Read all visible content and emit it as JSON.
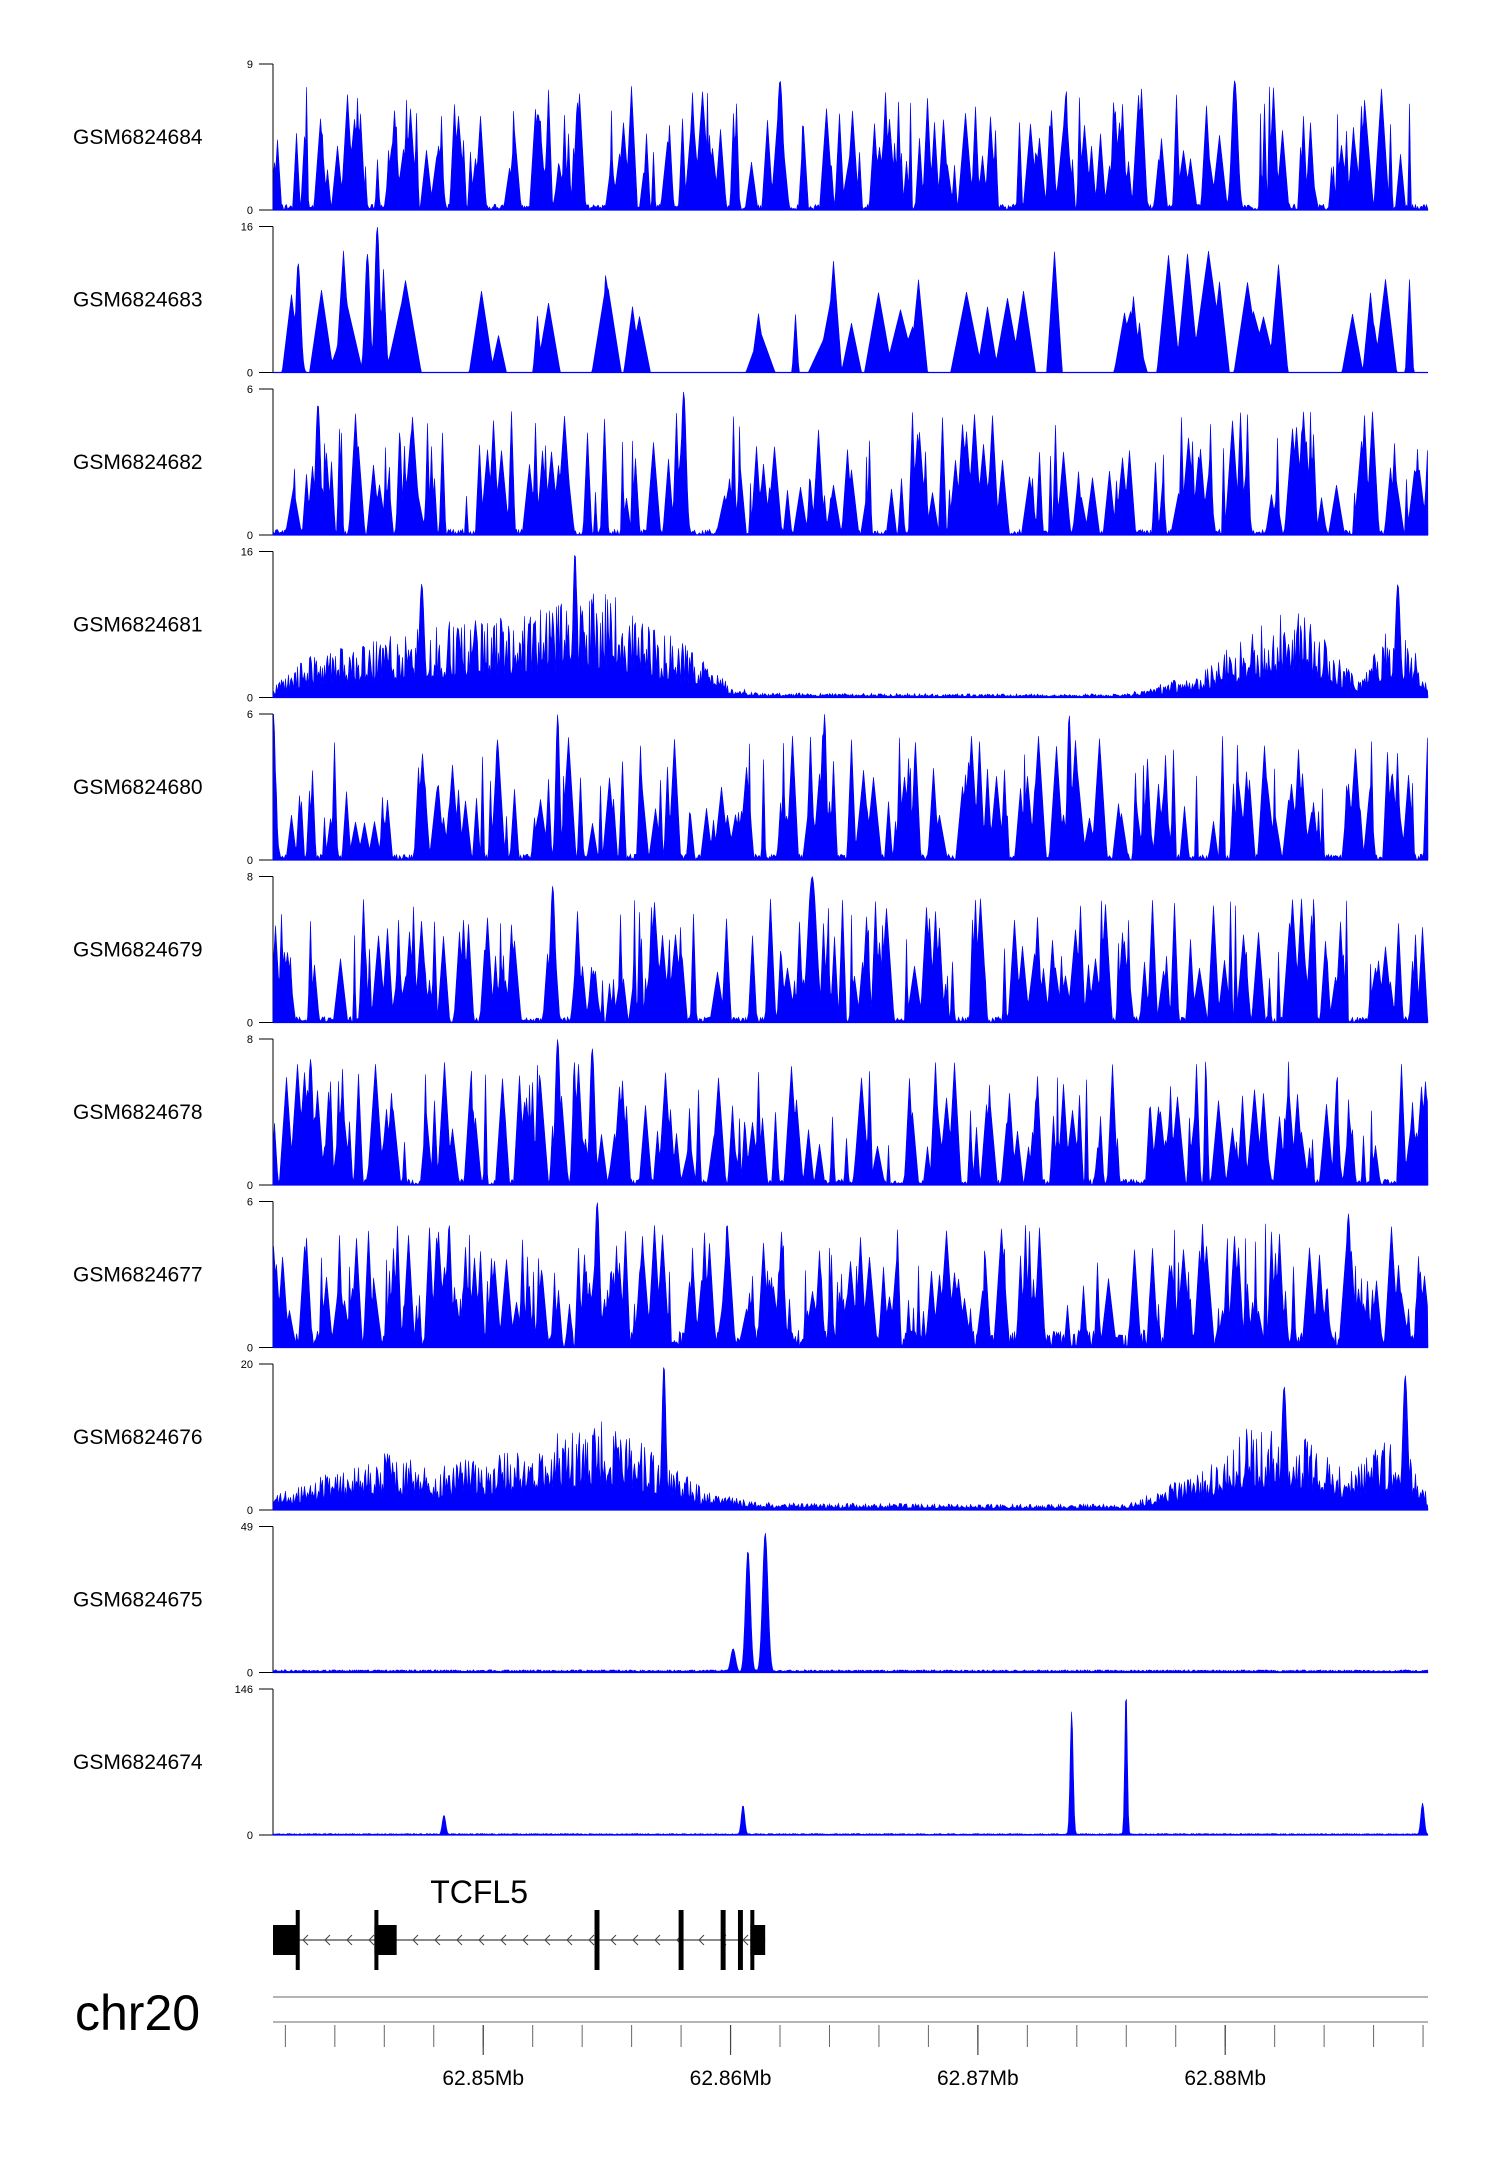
{
  "chart_data": {
    "type": "area",
    "chromosome": "chr20",
    "x_range_mb": [
      62.8415,
      62.8882
    ],
    "tracks": [
      {
        "name": "GSM6824684",
        "ylim": [
          0,
          9
        ],
        "ymax_label": "9",
        "ymin_label": "0",
        "kind": "spiky",
        "seed": 684,
        "profile": [],
        "peaks": [
          {
            "pos": 62.862,
            "h": 8.0,
            "w": 0.00012
          },
          {
            "pos": 62.8804,
            "h": 8.0,
            "w": 0.00012
          }
        ]
      },
      {
        "name": "GSM6824683",
        "ylim": [
          0,
          16
        ],
        "ymax_label": "16",
        "ymin_label": "0",
        "kind": "sparse",
        "seed": 683,
        "profile": [],
        "peaks": [
          {
            "pos": 62.8457,
            "h": 16,
            "w": 0.0001
          },
          {
            "pos": 62.8453,
            "h": 13,
            "w": 0.0001
          },
          {
            "pos": 62.8425,
            "h": 12,
            "w": 0.0001
          }
        ]
      },
      {
        "name": "GSM6824682",
        "ylim": [
          0,
          6
        ],
        "ymax_label": "6",
        "ymin_label": "0",
        "kind": "spiky",
        "seed": 682,
        "profile": [],
        "peaks": [
          {
            "pos": 62.8581,
            "h": 5.9,
            "w": 0.0001
          },
          {
            "pos": 62.8433,
            "h": 5.4,
            "w": 0.0001
          }
        ]
      },
      {
        "name": "GSM6824681",
        "ylim": [
          0,
          16
        ],
        "ymax_label": "16",
        "ymin_label": "0",
        "kind": "broad",
        "seed": 681,
        "profile": [
          [
            62.8415,
            1.0
          ],
          [
            62.843,
            3.5
          ],
          [
            62.846,
            5.0
          ],
          [
            62.8475,
            6.0
          ],
          [
            62.85,
            6.5
          ],
          [
            62.853,
            7.5
          ],
          [
            62.855,
            9.0
          ],
          [
            62.857,
            6.0
          ],
          [
            62.859,
            3.0
          ],
          [
            62.86,
            1.0
          ],
          [
            62.861,
            0.4
          ],
          [
            62.87,
            0.3
          ],
          [
            62.876,
            0.3
          ],
          [
            62.879,
            2.0
          ],
          [
            62.881,
            5.5
          ],
          [
            62.883,
            7.5
          ],
          [
            62.8845,
            3.5
          ],
          [
            62.8855,
            1.5
          ],
          [
            62.8865,
            6.0
          ],
          [
            62.8878,
            4.0
          ],
          [
            62.8882,
            1.0
          ]
        ],
        "peaks": [
          {
            "pos": 62.8537,
            "h": 16,
            "w": 8e-05
          },
          {
            "pos": 62.8475,
            "h": 12.5,
            "w": 0.0001
          },
          {
            "pos": 62.887,
            "h": 12.5,
            "w": 0.0001
          }
        ]
      },
      {
        "name": "GSM6824680",
        "ylim": [
          0,
          6
        ],
        "ymax_label": "6",
        "ymin_label": "0",
        "kind": "spiky",
        "seed": 680,
        "profile": [],
        "peaks": [
          {
            "pos": 62.8415,
            "h": 6,
            "w": 8e-05
          },
          {
            "pos": 62.853,
            "h": 6,
            "w": 8e-05
          },
          {
            "pos": 62.8638,
            "h": 6,
            "w": 8e-05
          },
          {
            "pos": 62.8737,
            "h": 6,
            "w": 8e-05
          }
        ]
      },
      {
        "name": "GSM6824679",
        "ylim": [
          0,
          8
        ],
        "ymax_label": "8",
        "ymin_label": "0",
        "kind": "spiky",
        "seed": 679,
        "profile": [],
        "peaks": [
          {
            "pos": 62.8633,
            "h": 8,
            "w": 0.00018
          },
          {
            "pos": 62.8528,
            "h": 7.5,
            "w": 0.0001
          }
        ]
      },
      {
        "name": "GSM6824678",
        "ylim": [
          0,
          8
        ],
        "ymax_label": "8",
        "ymin_label": "0",
        "kind": "spiky",
        "seed": 678,
        "profile": [],
        "peaks": [
          {
            "pos": 62.853,
            "h": 8,
            "w": 0.0001
          },
          {
            "pos": 62.8544,
            "h": 7.5,
            "w": 0.0001
          },
          {
            "pos": 62.843,
            "h": 6.9,
            "w": 0.0001
          }
        ]
      },
      {
        "name": "GSM6824677",
        "ylim": [
          0,
          6
        ],
        "ymax_label": "6",
        "ymin_label": "0",
        "kind": "dense",
        "seed": 677,
        "profile": [],
        "peaks": [
          {
            "pos": 62.8546,
            "h": 6,
            "w": 0.0001
          },
          {
            "pos": 62.885,
            "h": 5.5,
            "w": 0.0001
          }
        ]
      },
      {
        "name": "GSM6824676",
        "ylim": [
          0,
          20
        ],
        "ymax_label": "20",
        "ymin_label": "0",
        "kind": "broad",
        "seed": 676,
        "profile": [
          [
            62.8415,
            1.5
          ],
          [
            62.843,
            3.0
          ],
          [
            62.846,
            6.0
          ],
          [
            62.848,
            4.5
          ],
          [
            62.85,
            5.5
          ],
          [
            62.853,
            8.0
          ],
          [
            62.855,
            9.5
          ],
          [
            62.857,
            6.0
          ],
          [
            62.859,
            2.0
          ],
          [
            62.861,
            0.8
          ],
          [
            62.87,
            0.6
          ],
          [
            62.876,
            0.6
          ],
          [
            62.879,
            4.0
          ],
          [
            62.881,
            9.0
          ],
          [
            62.883,
            8.0
          ],
          [
            62.885,
            4.0
          ],
          [
            62.8865,
            7.0
          ],
          [
            62.8878,
            5.0
          ],
          [
            62.8882,
            1.5
          ]
        ],
        "peaks": [
          {
            "pos": 62.8573,
            "h": 20,
            "w": 8e-05
          },
          {
            "pos": 62.8873,
            "h": 18.5,
            "w": 0.0001
          },
          {
            "pos": 62.8824,
            "h": 17.0,
            "w": 0.0001
          }
        ]
      },
      {
        "name": "GSM6824675",
        "ylim": [
          0,
          49
        ],
        "ymax_label": "49",
        "ymin_label": "0",
        "kind": "quiet",
        "seed": 675,
        "profile": [
          [
            62.8415,
            0.6
          ],
          [
            62.8882,
            0.6
          ]
        ],
        "peaks": [
          {
            "pos": 62.8607,
            "h": 41,
            "w": 0.0001
          },
          {
            "pos": 62.8614,
            "h": 47,
            "w": 0.00011
          },
          {
            "pos": 62.8601,
            "h": 8,
            "w": 0.0001
          }
        ]
      },
      {
        "name": "GSM6824674",
        "ylim": [
          0,
          146
        ],
        "ymax_label": "146",
        "ymin_label": "0",
        "kind": "quiet",
        "seed": 674,
        "profile": [
          [
            62.8415,
            1.0
          ],
          [
            62.8882,
            1.0
          ]
        ],
        "peaks": [
          {
            "pos": 62.8484,
            "h": 20,
            "w": 7e-05
          },
          {
            "pos": 62.8605,
            "h": 30,
            "w": 7e-05
          },
          {
            "pos": 62.8738,
            "h": 124,
            "w": 6e-05
          },
          {
            "pos": 62.876,
            "h": 146,
            "w": 5e-05
          },
          {
            "pos": 62.888,
            "h": 32,
            "w": 7e-05
          }
        ]
      }
    ],
    "gene": {
      "name": "TCFL5",
      "strand": "-",
      "start_mb": 62.8415,
      "end_mb": 62.8614,
      "exons_mb": [
        [
          62.8415,
          62.8425
        ],
        [
          62.8456,
          62.8465
        ],
        [
          62.8545,
          62.8547
        ],
        [
          62.8579,
          62.8581
        ],
        [
          62.8596,
          62.8598
        ],
        [
          62.8603,
          62.8605
        ],
        [
          62.8608,
          62.8614
        ]
      ]
    },
    "axis": {
      "minor_tick_step_mb": 0.002,
      "labeled_ticks_mb": [
        62.85,
        62.86,
        62.87,
        62.88
      ],
      "labeled_tick_text": [
        "62.85Mb",
        "62.86Mb",
        "62.87Mb",
        "62.88Mb"
      ]
    },
    "fill_color": "#0000ff"
  }
}
